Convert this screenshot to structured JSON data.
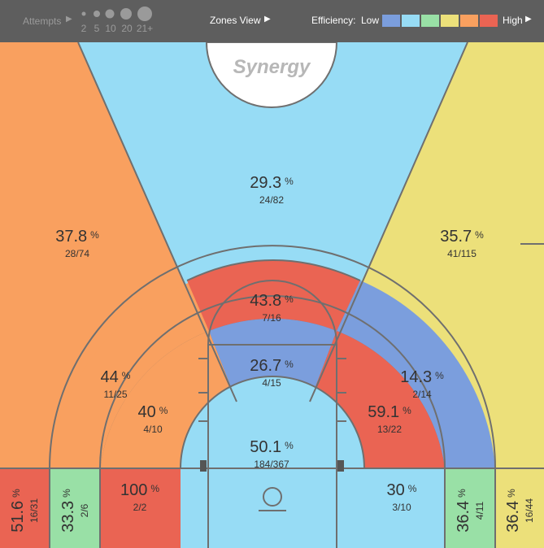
{
  "header": {
    "attempts_label": "Attempts",
    "attempt_sizes": [
      "2",
      "5",
      "10",
      "20",
      "21+"
    ],
    "zones_view_label": "Zones View",
    "efficiency_label": "Efficiency:",
    "low_label": "Low",
    "high_label": "High",
    "scale_colors": [
      "#7b9edd",
      "#97dcf5",
      "#99e0a6",
      "#ece07a",
      "#f9a05f",
      "#ea6453"
    ]
  },
  "logo_text": "Synergy",
  "chart_data": {
    "type": "heatmap",
    "zones": [
      {
        "id": "above-break-3-center",
        "pct": "29.3",
        "made": 24,
        "att": 82,
        "color": "#97dcf5"
      },
      {
        "id": "above-break-3-left",
        "pct": "37.8",
        "made": 28,
        "att": 74,
        "color": "#f9a05f"
      },
      {
        "id": "above-break-3-right",
        "pct": "35.7",
        "made": 41,
        "att": 115,
        "color": "#ece07a"
      },
      {
        "id": "long-2-center",
        "pct": "43.8",
        "made": 7,
        "att": 16,
        "color": "#ea6453"
      },
      {
        "id": "long-2-left",
        "pct": "44",
        "made": 11,
        "att": 25,
        "color": "#f9a05f"
      },
      {
        "id": "long-2-right",
        "pct": "14.3",
        "made": 2,
        "att": 14,
        "color": "#7b9edd"
      },
      {
        "id": "mid-center",
        "pct": "26.7",
        "made": 4,
        "att": 15,
        "color": "#7b9edd"
      },
      {
        "id": "mid-left",
        "pct": "40",
        "made": 4,
        "att": 10,
        "color": "#f9a05f"
      },
      {
        "id": "mid-right",
        "pct": "59.1",
        "made": 13,
        "att": 22,
        "color": "#ea6453"
      },
      {
        "id": "restricted-area",
        "pct": "50.1",
        "made": 184,
        "att": 367,
        "color": "#97dcf5"
      },
      {
        "id": "baseline-mid-left",
        "pct": "100",
        "made": 2,
        "att": 2,
        "color": "#ea6453"
      },
      {
        "id": "baseline-mid-right",
        "pct": "30",
        "made": 3,
        "att": 10,
        "color": "#97dcf5"
      },
      {
        "id": "corner-3-left",
        "pct": "51.6",
        "made": 16,
        "att": 31,
        "color": "#ea6453"
      },
      {
        "id": "short-corner-left",
        "pct": "33.3",
        "made": 2,
        "att": 6,
        "color": "#99e0a6"
      },
      {
        "id": "short-corner-right",
        "pct": "36.4",
        "made": 4,
        "att": 11,
        "color": "#99e0a6"
      },
      {
        "id": "corner-3-right",
        "pct": "36.4",
        "made": 16,
        "att": 44,
        "color": "#ece07a"
      }
    ]
  }
}
